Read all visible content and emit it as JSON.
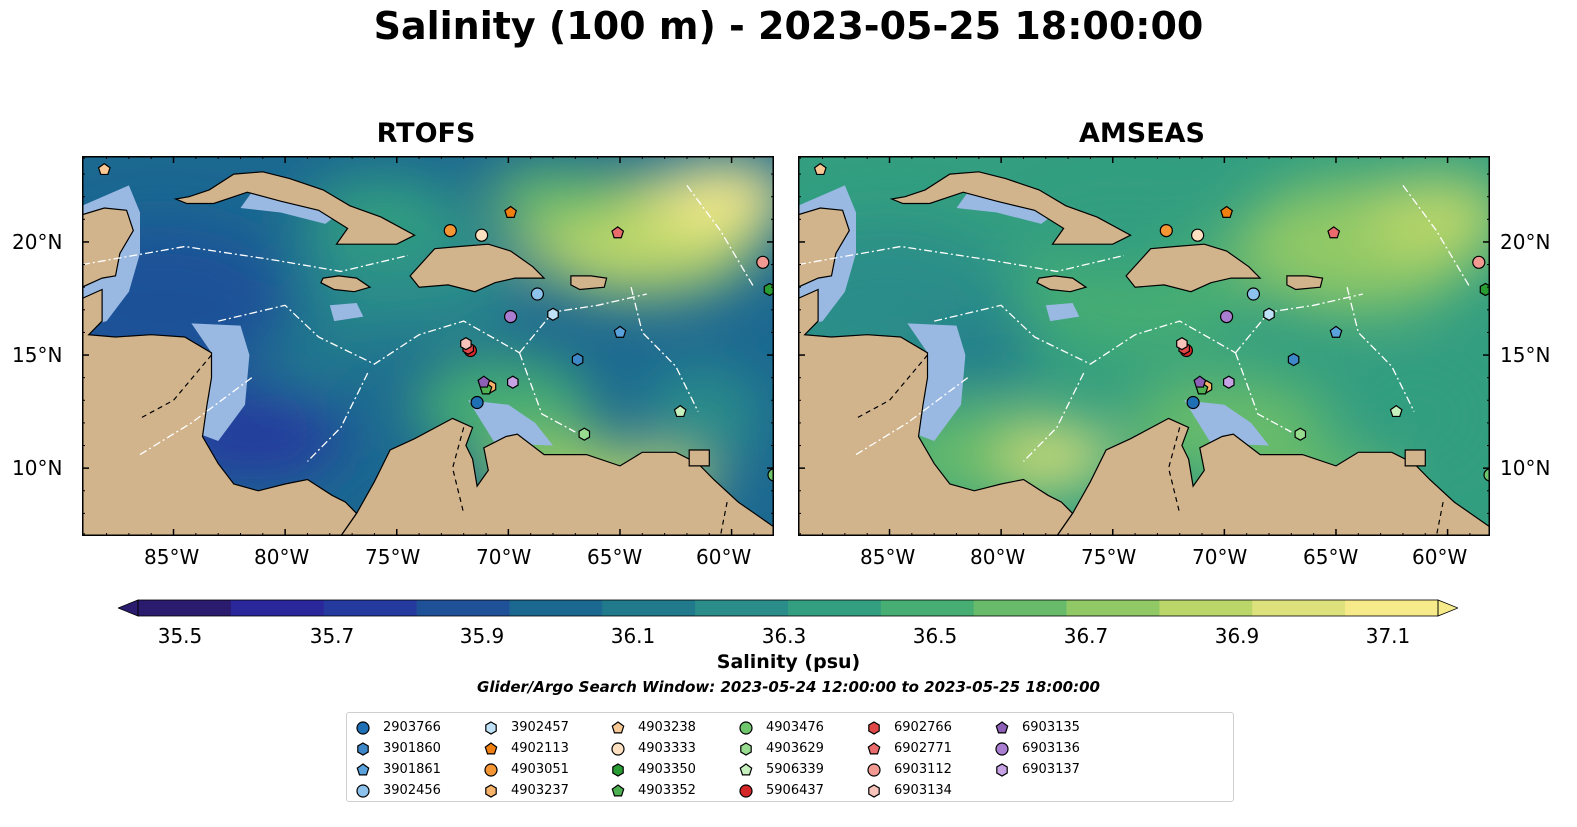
{
  "title": "Salinity (100 m) - 2023-05-25 18:00:00",
  "panels": [
    {
      "title": "RTOFS"
    },
    {
      "title": "AMSEAS"
    }
  ],
  "lat_ticks": [
    "20°N",
    "15°N",
    "10°N"
  ],
  "lon_ticks": [
    "85°W",
    "80°W",
    "75°W",
    "70°W",
    "65°W",
    "60°W"
  ],
  "colorbar": {
    "label": "Salinity (psu)",
    "ticks": [
      "35.5",
      "35.7",
      "35.9",
      "36.1",
      "36.3",
      "36.5",
      "36.7",
      "36.9",
      "37.1"
    ],
    "colors": [
      "#2b1b6e",
      "#29279a",
      "#253a9f",
      "#1e5198",
      "#1b6891",
      "#217a8c",
      "#2a8d89",
      "#339e80",
      "#46ae72",
      "#68bb6a",
      "#91c966",
      "#bcd769",
      "#dde27c",
      "#f7ea8b"
    ]
  },
  "search_window": "Glider/Argo Search Window: 2023-05-24 12:00:00 to 2023-05-25 18:00:00",
  "legend": [
    {
      "id": "2903766",
      "marker": "circle",
      "color": "#1f6fb4"
    },
    {
      "id": "3901860",
      "marker": "hexagon",
      "color": "#3f88c8"
    },
    {
      "id": "3901861",
      "marker": "pentagon",
      "color": "#5aa2dc"
    },
    {
      "id": "3902456",
      "marker": "circle",
      "color": "#8dc2ec"
    },
    {
      "id": "3902457",
      "marker": "hexagon",
      "color": "#bfe1f7"
    },
    {
      "id": "4902113",
      "marker": "pentagon",
      "color": "#f07f12"
    },
    {
      "id": "4903051",
      "marker": "circle",
      "color": "#f59634"
    },
    {
      "id": "4903237",
      "marker": "hexagon",
      "color": "#f7b26a"
    },
    {
      "id": "4903238",
      "marker": "pentagon",
      "color": "#f9c995"
    },
    {
      "id": "4903333",
      "marker": "circle",
      "color": "#fce0c0"
    },
    {
      "id": "4903350",
      "marker": "hexagon",
      "color": "#2a9c34"
    },
    {
      "id": "4903352",
      "marker": "pentagon",
      "color": "#4db152"
    },
    {
      "id": "4903476",
      "marker": "circle",
      "color": "#6fc66d"
    },
    {
      "id": "4903629",
      "marker": "hexagon",
      "color": "#98dc90"
    },
    {
      "id": "5906339",
      "marker": "pentagon",
      "color": "#c6f0bd"
    },
    {
      "id": "5906437",
      "marker": "circle",
      "color": "#d62728"
    },
    {
      "id": "6902766",
      "marker": "hexagon",
      "color": "#e04848"
    },
    {
      "id": "6902771",
      "marker": "pentagon",
      "color": "#ea6b6b"
    },
    {
      "id": "6903112",
      "marker": "circle",
      "color": "#f29a92"
    },
    {
      "id": "6903134",
      "marker": "hexagon",
      "color": "#f8c3bb"
    },
    {
      "id": "6903135",
      "marker": "pentagon",
      "color": "#8e5fb6"
    },
    {
      "id": "6903136",
      "marker": "circle",
      "color": "#a97dd0"
    },
    {
      "id": "6903137",
      "marker": "hexagon",
      "color": "#c7a3e6"
    }
  ],
  "colors": {
    "land": "#d2b48c",
    "shallow_water": "#99b9e2",
    "contour": "#ffffff"
  }
}
